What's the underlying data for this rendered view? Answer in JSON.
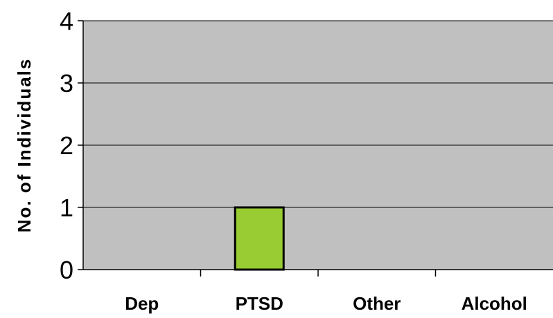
{
  "chart_data": {
    "type": "bar",
    "title": "",
    "xlabel": "",
    "ylabel": "No. of Individuals",
    "categories": [
      "Dep",
      "PTSD",
      "Other",
      "Alcohol"
    ],
    "values": [
      0,
      1,
      0,
      0
    ],
    "ylim": [
      0,
      4
    ],
    "yticks": [
      "0",
      "1",
      "2",
      "3",
      "4"
    ],
    "grid": true,
    "legend": "none",
    "colors": {
      "bar": "#99cc33",
      "bar_border": "#000000",
      "plot_background": "#c0c0c0",
      "gridline": "#000000"
    }
  }
}
